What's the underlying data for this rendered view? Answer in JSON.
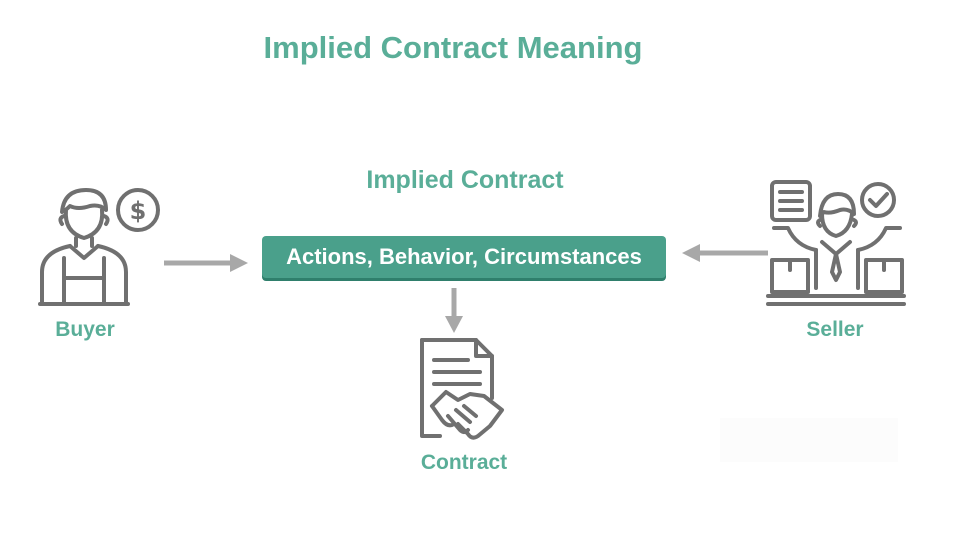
{
  "title": "Implied Contract Meaning",
  "subtitle": "Implied Contract",
  "center_box": "Actions, Behavior, Circumstances",
  "labels": {
    "buyer": "Buyer",
    "seller": "Seller",
    "contract": "Contract"
  },
  "colors": {
    "accent": "#5aae98",
    "box": "#4aa08b",
    "icon": "#707070",
    "arrow": "#a8a8a8"
  },
  "icons": {
    "buyer": "buyer-with-dollar-icon",
    "seller": "seller-with-checklist-icon",
    "contract": "contract-handshake-icon"
  }
}
